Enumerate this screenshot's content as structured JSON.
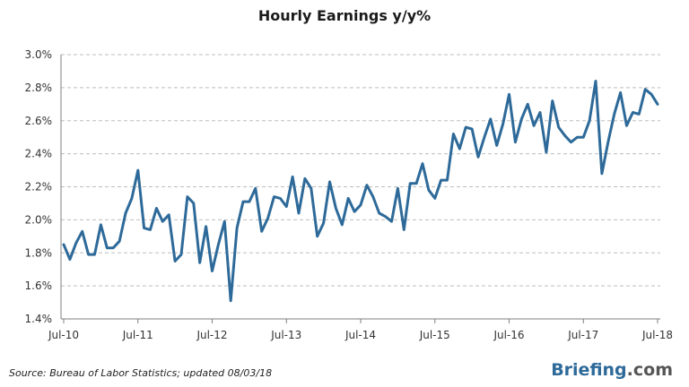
{
  "chart_data": {
    "type": "line",
    "title": "Hourly Earnings y/y%",
    "xlabel": "",
    "ylabel": "",
    "ylim": [
      1.4,
      3.0
    ],
    "y_ticks": [
      "1.4%",
      "1.6%",
      "1.8%",
      "2.0%",
      "2.2%",
      "2.4%",
      "2.6%",
      "2.8%",
      "3.0%"
    ],
    "x_ticks": [
      "Jul-10",
      "Jul-11",
      "Jul-12",
      "Jul-13",
      "Jul-14",
      "Jul-15",
      "Jul-16",
      "Jul-17",
      "Jul-18"
    ],
    "grid": true,
    "series": [
      {
        "color": "#2e6a99",
        "x_start": "Jul-10",
        "values": [
          1.85,
          1.76,
          1.86,
          1.93,
          1.79,
          1.79,
          1.97,
          1.83,
          1.83,
          1.87,
          2.04,
          2.13,
          2.3,
          1.95,
          1.94,
          2.07,
          1.99,
          2.03,
          1.75,
          1.79,
          2.14,
          2.1,
          1.74,
          1.96,
          1.69,
          1.85,
          1.99,
          1.51,
          1.95,
          2.11,
          2.11,
          2.19,
          1.93,
          2.01,
          2.14,
          2.13,
          2.08,
          2.26,
          2.04,
          2.25,
          2.19,
          1.9,
          1.98,
          2.23,
          2.07,
          1.97,
          2.13,
          2.05,
          2.09,
          2.21,
          2.14,
          2.04,
          2.02,
          1.99,
          2.19,
          1.94,
          2.22,
          2.22,
          2.34,
          2.18,
          2.13,
          2.24,
          2.24,
          2.52,
          2.43,
          2.56,
          2.55,
          2.38,
          2.5,
          2.61,
          2.45,
          2.58,
          2.76,
          2.47,
          2.61,
          2.7,
          2.57,
          2.65,
          2.41,
          2.72,
          2.56,
          2.51,
          2.47,
          2.5,
          2.5,
          2.6,
          2.84,
          2.28,
          2.47,
          2.64,
          2.77,
          2.57,
          2.65,
          2.64,
          2.79,
          2.76,
          2.7
        ]
      }
    ]
  },
  "footer": {
    "source": "Source: Bureau of Labor Statistics; updated 08/03/18",
    "brand_part1": "Briefing",
    "brand_part2": ".com"
  }
}
